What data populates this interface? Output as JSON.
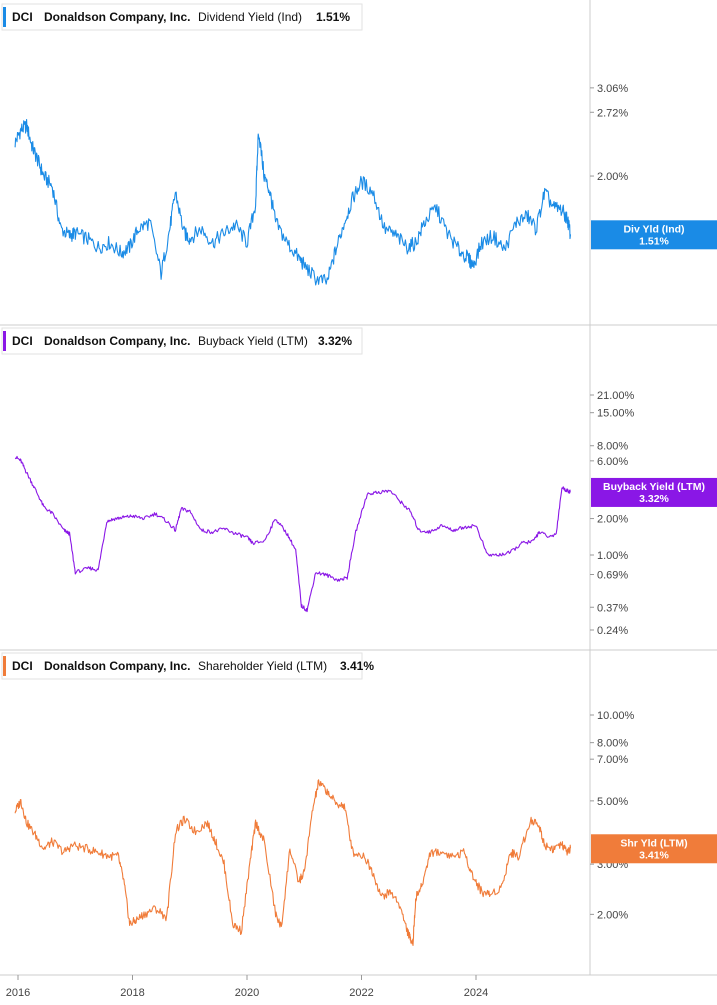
{
  "chart_data": [
    {
      "type": "line",
      "ticker": "DCI",
      "company": "Donaldson Company, Inc.",
      "metric": "Dividend Yield (Ind)",
      "current": "1.51%",
      "tag_label": "Div Yld (Ind)",
      "tag_value": "1.51%",
      "color": "#1a8be6",
      "y_scale": "log",
      "ylim": [
        1.1,
        3.5
      ],
      "y_ticks": [
        "3.06%",
        "2.72%",
        "2.00%"
      ],
      "y_tick_values": [
        3.06,
        2.72,
        2.0
      ],
      "x": [
        2015.95,
        2016.05,
        2016.15,
        2016.25,
        2016.35,
        2016.45,
        2016.6,
        2016.75,
        2016.9,
        2017.0,
        2017.2,
        2017.4,
        2017.6,
        2017.8,
        2017.95,
        2018.1,
        2018.3,
        2018.5,
        2018.65,
        2018.75,
        2018.9,
        2019.0,
        2019.2,
        2019.4,
        2019.6,
        2019.8,
        2020.0,
        2020.15,
        2020.2,
        2020.3,
        2020.4,
        2020.5,
        2020.7,
        2020.9,
        2021.0,
        2021.2,
        2021.4,
        2021.55,
        2021.7,
        2021.85,
        2022.0,
        2022.2,
        2022.4,
        2022.6,
        2022.8,
        2022.95,
        2023.1,
        2023.3,
        2023.5,
        2023.7,
        2023.85,
        2023.95,
        2024.1,
        2024.3,
        2024.5,
        2024.7,
        2024.9,
        2025.05,
        2025.2,
        2025.35,
        2025.5,
        2025.6,
        2025.65
      ],
      "y": [
        2.35,
        2.5,
        2.55,
        2.3,
        2.15,
        2.0,
        1.9,
        1.55,
        1.5,
        1.52,
        1.48,
        1.42,
        1.45,
        1.38,
        1.42,
        1.55,
        1.6,
        1.25,
        1.55,
        1.85,
        1.52,
        1.48,
        1.55,
        1.45,
        1.52,
        1.58,
        1.45,
        1.75,
        2.5,
        2.0,
        1.85,
        1.6,
        1.45,
        1.35,
        1.3,
        1.22,
        1.2,
        1.4,
        1.6,
        1.8,
        1.95,
        1.85,
        1.55,
        1.5,
        1.42,
        1.45,
        1.6,
        1.72,
        1.52,
        1.4,
        1.35,
        1.3,
        1.45,
        1.5,
        1.4,
        1.6,
        1.65,
        1.55,
        1.85,
        1.72,
        1.7,
        1.62,
        1.51
      ]
    },
    {
      "type": "line",
      "ticker": "DCI",
      "company": "Donaldson Company, Inc.",
      "metric": "Buyback Yield (LTM)",
      "current": "3.32%",
      "tag_label": "Buyback Yield (LTM)",
      "tag_value": "3.32%",
      "color": "#8a17e6",
      "y_scale": "log",
      "ylim": [
        0.24,
        21.0
      ],
      "y_ticks": [
        "21.00%",
        "15.00%",
        "8.00%",
        "6.00%",
        "2.00%",
        "1.00%",
        "0.69%",
        "0.37%",
        "0.24%"
      ],
      "y_tick_values": [
        21.0,
        15.0,
        8.0,
        6.0,
        2.0,
        1.0,
        0.69,
        0.37,
        0.24
      ],
      "x": [
        2015.95,
        2016.05,
        2016.15,
        2016.3,
        2016.45,
        2016.6,
        2016.8,
        2016.9,
        2017.0,
        2017.25,
        2017.4,
        2017.55,
        2017.7,
        2017.85,
        2018.0,
        2018.2,
        2018.4,
        2018.6,
        2018.75,
        2018.85,
        2019.0,
        2019.2,
        2019.4,
        2019.6,
        2019.8,
        2020.0,
        2020.1,
        2020.3,
        2020.5,
        2020.7,
        2020.85,
        2020.95,
        2021.05,
        2021.2,
        2021.4,
        2021.6,
        2021.75,
        2021.9,
        2022.1,
        2022.3,
        2022.5,
        2022.7,
        2022.85,
        2023.0,
        2023.2,
        2023.4,
        2023.6,
        2023.8,
        2024.0,
        2024.2,
        2024.4,
        2024.6,
        2024.8,
        2025.0,
        2025.1,
        2025.3,
        2025.4,
        2025.5,
        2025.6,
        2025.65
      ],
      "y": [
        6.5,
        6.0,
        4.8,
        3.5,
        2.5,
        2.2,
        1.6,
        1.5,
        0.72,
        0.78,
        0.75,
        1.9,
        2.0,
        2.05,
        2.1,
        2.0,
        2.2,
        1.9,
        1.6,
        2.4,
        2.3,
        1.6,
        1.55,
        1.65,
        1.5,
        1.4,
        1.25,
        1.3,
        2.0,
        1.5,
        1.1,
        0.38,
        0.35,
        0.72,
        0.68,
        0.62,
        0.65,
        1.55,
        3.2,
        3.3,
        3.4,
        2.7,
        2.3,
        1.6,
        1.55,
        1.75,
        1.6,
        1.7,
        1.75,
        1.0,
        1.0,
        1.05,
        1.25,
        1.3,
        1.55,
        1.4,
        1.5,
        3.6,
        3.4,
        3.32
      ]
    },
    {
      "type": "line",
      "ticker": "DCI",
      "company": "Donaldson Company, Inc.",
      "metric": "Shareholder Yield (LTM)",
      "current": "3.41%",
      "tag_label": "Shr Yld (LTM)",
      "tag_value": "3.41%",
      "color": "#f07c3a",
      "y_scale": "log",
      "ylim": [
        1.5,
        10.0
      ],
      "y_ticks": [
        "10.00%",
        "8.00%",
        "7.00%",
        "5.00%",
        "3.00%",
        "2.00%"
      ],
      "y_tick_values": [
        10.0,
        8.0,
        7.0,
        5.0,
        3.0,
        2.0
      ],
      "x": [
        2015.95,
        2016.05,
        2016.15,
        2016.3,
        2016.45,
        2016.6,
        2016.8,
        2016.95,
        2017.2,
        2017.4,
        2017.6,
        2017.75,
        2017.85,
        2017.95,
        2018.05,
        2018.2,
        2018.4,
        2018.6,
        2018.75,
        2018.9,
        2019.1,
        2019.3,
        2019.45,
        2019.6,
        2019.75,
        2019.9,
        2020.05,
        2020.15,
        2020.3,
        2020.5,
        2020.6,
        2020.75,
        2020.9,
        2021.0,
        2021.15,
        2021.25,
        2021.4,
        2021.55,
        2021.7,
        2021.85,
        2022.05,
        2022.2,
        2022.35,
        2022.5,
        2022.65,
        2022.8,
        2022.85,
        2022.9,
        2022.95,
        2023.05,
        2023.2,
        2023.4,
        2023.6,
        2023.8,
        2023.95,
        2024.1,
        2024.25,
        2024.45,
        2024.6,
        2024.75,
        2024.95,
        2025.1,
        2025.2,
        2025.35,
        2025.5,
        2025.6,
        2025.65
      ],
      "y": [
        4.6,
        5.0,
        4.2,
        3.8,
        3.4,
        3.6,
        3.3,
        3.5,
        3.4,
        3.3,
        3.2,
        3.2,
        2.6,
        1.85,
        1.9,
        2.0,
        2.1,
        1.95,
        3.9,
        4.3,
        3.9,
        4.2,
        3.6,
        3.0,
        1.85,
        1.75,
        3.0,
        4.2,
        3.6,
        2.0,
        1.8,
        3.4,
        2.6,
        2.8,
        4.7,
        5.8,
        5.4,
        4.9,
        4.8,
        3.3,
        3.2,
        2.8,
        2.3,
        2.4,
        2.2,
        1.75,
        1.65,
        1.6,
        2.3,
        2.5,
        3.3,
        3.3,
        3.2,
        3.3,
        2.7,
        2.4,
        2.35,
        2.5,
        3.3,
        3.2,
        4.3,
        4.1,
        3.5,
        3.4,
        3.5,
        3.3,
        3.41
      ]
    }
  ],
  "x_axis": {
    "xlim": [
      2015.95,
      2025.95
    ],
    "ticks": [
      "2016",
      "2018",
      "2020",
      "2022",
      "2024"
    ],
    "tick_values": [
      2016,
      2018,
      2020,
      2022,
      2024
    ]
  }
}
